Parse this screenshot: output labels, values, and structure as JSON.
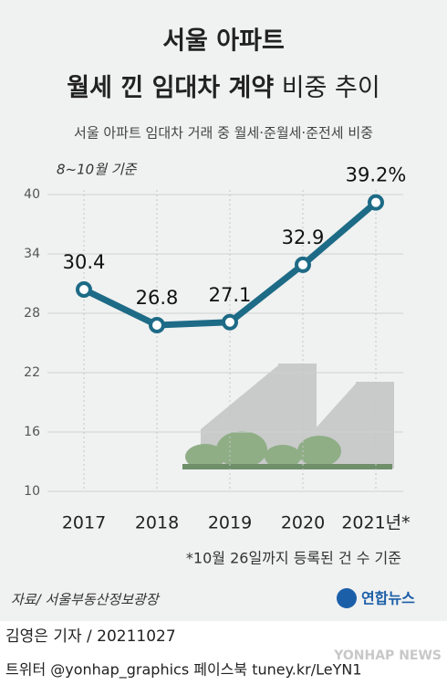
{
  "chart_data": {
    "type": "line",
    "title": [
      "서울 아파트",
      "월세 낀 임대차 계약",
      "비중 추이"
    ],
    "subtitle": "서울 아파트 임대차 거래 중 월세·준월세·준전세 비중",
    "note": "8~10월 기준",
    "categories": [
      "2017",
      "2018",
      "2019",
      "2020",
      "2021년*"
    ],
    "values": [
      30.4,
      26.8,
      27.1,
      32.9,
      39.2
    ],
    "value_labels": [
      "30.4",
      "26.8",
      "27.1",
      "32.9",
      "39.2%"
    ],
    "color": "#1d6b86",
    "ylim": [
      10,
      40
    ],
    "yticks": [
      10,
      16,
      22,
      28,
      34,
      40
    ],
    "grid": true,
    "footnote": "*10월 26일까지 등록된 건 수 기준",
    "source": "자료/ 서울부동산정보광장",
    "logo": "연합뉴스",
    "byline": "김영은 기자 / 20211027",
    "social": "트위터 @yonhap_graphics  페이스북 tuney.kr/LeYN1",
    "watermark": "YONHAP NEWS"
  }
}
